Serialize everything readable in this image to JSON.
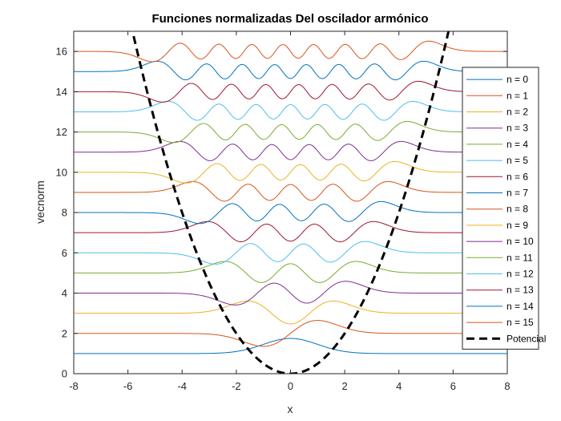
{
  "chart_data": {
    "type": "line",
    "title": "Funciones normalizadas Del oscilador armónico",
    "xlabel": "x",
    "ylabel": "vecnorm",
    "xlim": [
      -8,
      8
    ],
    "ylim": [
      0,
      17
    ],
    "xticks": [
      "-8",
      "-6",
      "-4",
      "-2",
      "0",
      "2",
      "4",
      "6",
      "8"
    ],
    "yticks": [
      "0",
      "2",
      "4",
      "6",
      "8",
      "10",
      "12",
      "14",
      "16"
    ],
    "grid": false,
    "legend_position": "right",
    "series": [
      {
        "name": "n = 0",
        "n": 0,
        "offset": 1,
        "color": "#0072BD"
      },
      {
        "name": "n = 1",
        "n": 1,
        "offset": 2,
        "color": "#D95319"
      },
      {
        "name": "n = 2",
        "n": 2,
        "offset": 3,
        "color": "#EDB120"
      },
      {
        "name": "n = 3",
        "n": 3,
        "offset": 4,
        "color": "#7E2F8E"
      },
      {
        "name": "n = 4",
        "n": 4,
        "offset": 5,
        "color": "#77AC30"
      },
      {
        "name": "n = 5",
        "n": 5,
        "offset": 6,
        "color": "#4DBEEE"
      },
      {
        "name": "n = 6",
        "n": 6,
        "offset": 7,
        "color": "#A2142F"
      },
      {
        "name": "n = 7",
        "n": 7,
        "offset": 8,
        "color": "#0072BD"
      },
      {
        "name": "n = 8",
        "n": 8,
        "offset": 9,
        "color": "#D95319"
      },
      {
        "name": "n = 9",
        "n": 9,
        "offset": 10,
        "color": "#EDB120"
      },
      {
        "name": "n = 10",
        "n": 10,
        "offset": 11,
        "color": "#7E2F8E"
      },
      {
        "name": "n = 11",
        "n": 11,
        "offset": 12,
        "color": "#77AC30"
      },
      {
        "name": "n = 12",
        "n": 12,
        "offset": 13,
        "color": "#4DBEEE"
      },
      {
        "name": "n = 13",
        "n": 13,
        "offset": 14,
        "color": "#A2142F"
      },
      {
        "name": "n = 14",
        "n": 14,
        "offset": 15,
        "color": "#0072BD"
      },
      {
        "name": "n = 15",
        "n": 15,
        "offset": 16,
        "color": "#D95319"
      },
      {
        "name": "Potencial",
        "type": "potential",
        "function": "x^2/2",
        "color": "#000000",
        "style": "dashed"
      }
    ]
  }
}
